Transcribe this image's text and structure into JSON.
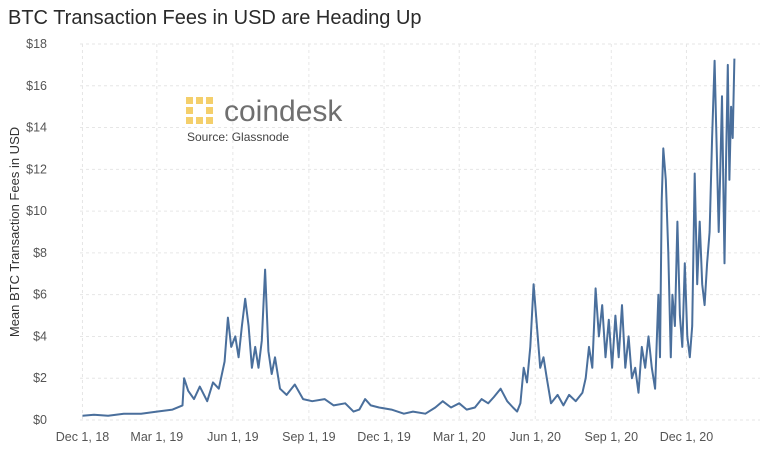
{
  "chart_data": {
    "type": "line",
    "title": "BTC Transaction Fees in USD are Heading Up",
    "xlabel": "",
    "ylabel": "Mean BTC Transaction Fees in USD",
    "ylim": [
      0,
      18
    ],
    "yticks": [
      0,
      2,
      4,
      6,
      8,
      10,
      12,
      14,
      16,
      18
    ],
    "ytick_labels": [
      "$0",
      "$2",
      "$4",
      "$6",
      "$8",
      "$10",
      "$12",
      "$14",
      "$16",
      "$18"
    ],
    "xlim": [
      "2018-11-28",
      "2021-02-28"
    ],
    "xticks": [
      "2018-12-01",
      "2019-03-01",
      "2019-06-01",
      "2019-09-01",
      "2019-12-01",
      "2020-03-01",
      "2020-06-01",
      "2020-09-01",
      "2020-12-01"
    ],
    "xtick_labels": [
      "Dec 1, 18",
      "Mar 1, 19",
      "Jun 1, 19",
      "Sep 1, 19",
      "Dec 1, 19",
      "Mar 1, 20",
      "Jun 1, 20",
      "Sep 1, 20",
      "Dec 1, 20"
    ],
    "grid": true,
    "series": [
      {
        "color": "#4a6f9c",
        "points": [
          [
            "2018-12-01",
            0.2
          ],
          [
            "2018-12-15",
            0.25
          ],
          [
            "2019-01-01",
            0.2
          ],
          [
            "2019-01-20",
            0.3
          ],
          [
            "2019-02-10",
            0.3
          ],
          [
            "2019-03-01",
            0.4
          ],
          [
            "2019-03-20",
            0.5
          ],
          [
            "2019-04-01",
            0.7
          ],
          [
            "2019-04-03",
            2.0
          ],
          [
            "2019-04-08",
            1.4
          ],
          [
            "2019-04-15",
            1.0
          ],
          [
            "2019-04-22",
            1.6
          ],
          [
            "2019-05-01",
            0.9
          ],
          [
            "2019-05-08",
            1.8
          ],
          [
            "2019-05-15",
            1.5
          ],
          [
            "2019-05-22",
            2.8
          ],
          [
            "2019-05-26",
            4.9
          ],
          [
            "2019-05-30",
            3.5
          ],
          [
            "2019-06-04",
            4.0
          ],
          [
            "2019-06-08",
            3.0
          ],
          [
            "2019-06-12",
            4.5
          ],
          [
            "2019-06-16",
            5.8
          ],
          [
            "2019-06-20",
            4.5
          ],
          [
            "2019-06-24",
            2.5
          ],
          [
            "2019-06-28",
            3.5
          ],
          [
            "2019-07-02",
            2.5
          ],
          [
            "2019-07-06",
            3.8
          ],
          [
            "2019-07-10",
            7.2
          ],
          [
            "2019-07-14",
            3.3
          ],
          [
            "2019-07-18",
            2.2
          ],
          [
            "2019-07-22",
            3.0
          ],
          [
            "2019-07-28",
            1.5
          ],
          [
            "2019-08-05",
            1.2
          ],
          [
            "2019-08-15",
            1.7
          ],
          [
            "2019-08-25",
            1.0
          ],
          [
            "2019-09-05",
            0.9
          ],
          [
            "2019-09-20",
            1.0
          ],
          [
            "2019-10-01",
            0.7
          ],
          [
            "2019-10-15",
            0.8
          ],
          [
            "2019-10-25",
            0.4
          ],
          [
            "2019-11-01",
            0.5
          ],
          [
            "2019-11-08",
            1.0
          ],
          [
            "2019-11-15",
            0.7
          ],
          [
            "2019-11-25",
            0.6
          ],
          [
            "2019-12-10",
            0.5
          ],
          [
            "2019-12-25",
            0.3
          ],
          [
            "2020-01-05",
            0.4
          ],
          [
            "2020-01-20",
            0.3
          ],
          [
            "2020-02-01",
            0.6
          ],
          [
            "2020-02-10",
            0.9
          ],
          [
            "2020-02-20",
            0.6
          ],
          [
            "2020-03-01",
            0.8
          ],
          [
            "2020-03-10",
            0.5
          ],
          [
            "2020-03-20",
            0.6
          ],
          [
            "2020-03-28",
            1.0
          ],
          [
            "2020-04-05",
            0.8
          ],
          [
            "2020-04-12",
            1.1
          ],
          [
            "2020-04-20",
            1.5
          ],
          [
            "2020-04-28",
            0.9
          ],
          [
            "2020-05-05",
            0.6
          ],
          [
            "2020-05-10",
            0.4
          ],
          [
            "2020-05-14",
            0.8
          ],
          [
            "2020-05-18",
            2.5
          ],
          [
            "2020-05-22",
            1.8
          ],
          [
            "2020-05-26",
            3.5
          ],
          [
            "2020-05-30",
            6.5
          ],
          [
            "2020-06-03",
            4.5
          ],
          [
            "2020-06-07",
            2.5
          ],
          [
            "2020-06-11",
            3.0
          ],
          [
            "2020-06-15",
            2.0
          ],
          [
            "2020-06-20",
            0.8
          ],
          [
            "2020-06-28",
            1.2
          ],
          [
            "2020-07-05",
            0.7
          ],
          [
            "2020-07-12",
            1.2
          ],
          [
            "2020-07-20",
            0.9
          ],
          [
            "2020-07-28",
            1.3
          ],
          [
            "2020-08-01",
            2.0
          ],
          [
            "2020-08-05",
            3.5
          ],
          [
            "2020-08-09",
            2.5
          ],
          [
            "2020-08-13",
            6.3
          ],
          [
            "2020-08-17",
            4.0
          ],
          [
            "2020-08-21",
            5.5
          ],
          [
            "2020-08-25",
            3.0
          ],
          [
            "2020-08-29",
            4.8
          ],
          [
            "2020-09-02",
            2.5
          ],
          [
            "2020-09-06",
            5.0
          ],
          [
            "2020-09-10",
            3.0
          ],
          [
            "2020-09-14",
            5.5
          ],
          [
            "2020-09-18",
            2.5
          ],
          [
            "2020-09-22",
            4.0
          ],
          [
            "2020-09-26",
            2.0
          ],
          [
            "2020-09-30",
            2.5
          ],
          [
            "2020-10-04",
            1.3
          ],
          [
            "2020-10-08",
            3.5
          ],
          [
            "2020-10-12",
            2.5
          ],
          [
            "2020-10-16",
            4.0
          ],
          [
            "2020-10-20",
            2.5
          ],
          [
            "2020-10-24",
            1.5
          ],
          [
            "2020-10-28",
            6.0
          ],
          [
            "2020-10-30",
            3.0
          ],
          [
            "2020-11-01",
            10.5
          ],
          [
            "2020-11-03",
            13.0
          ],
          [
            "2020-11-06",
            11.5
          ],
          [
            "2020-11-09",
            8.0
          ],
          [
            "2020-11-12",
            3.0
          ],
          [
            "2020-11-14",
            6.0
          ],
          [
            "2020-11-17",
            4.5
          ],
          [
            "2020-11-20",
            9.5
          ],
          [
            "2020-11-23",
            5.0
          ],
          [
            "2020-11-26",
            3.5
          ],
          [
            "2020-11-29",
            7.5
          ],
          [
            "2020-12-02",
            4.0
          ],
          [
            "2020-12-05",
            3.0
          ],
          [
            "2020-12-08",
            4.5
          ],
          [
            "2020-12-11",
            11.8
          ],
          [
            "2020-12-14",
            6.5
          ],
          [
            "2020-12-17",
            9.5
          ],
          [
            "2020-12-20",
            6.5
          ],
          [
            "2020-12-23",
            5.5
          ],
          [
            "2020-12-26",
            7.5
          ],
          [
            "2020-12-29",
            9.0
          ],
          [
            "2021-01-01",
            13.5
          ],
          [
            "2021-01-04",
            17.2
          ],
          [
            "2021-01-06",
            14.0
          ],
          [
            "2021-01-09",
            9.0
          ],
          [
            "2021-01-11",
            12.0
          ],
          [
            "2021-01-13",
            15.5
          ],
          [
            "2021-01-16",
            7.5
          ],
          [
            "2021-01-18",
            12.5
          ],
          [
            "2021-01-20",
            17.0
          ],
          [
            "2021-01-22",
            11.5
          ],
          [
            "2021-01-24",
            15.0
          ],
          [
            "2021-01-26",
            13.5
          ],
          [
            "2021-01-28",
            17.3
          ]
        ]
      }
    ]
  },
  "branding": {
    "logo_text": "coindesk",
    "source": "Source: Glassnode",
    "logo_color": "#f4cf6b"
  }
}
